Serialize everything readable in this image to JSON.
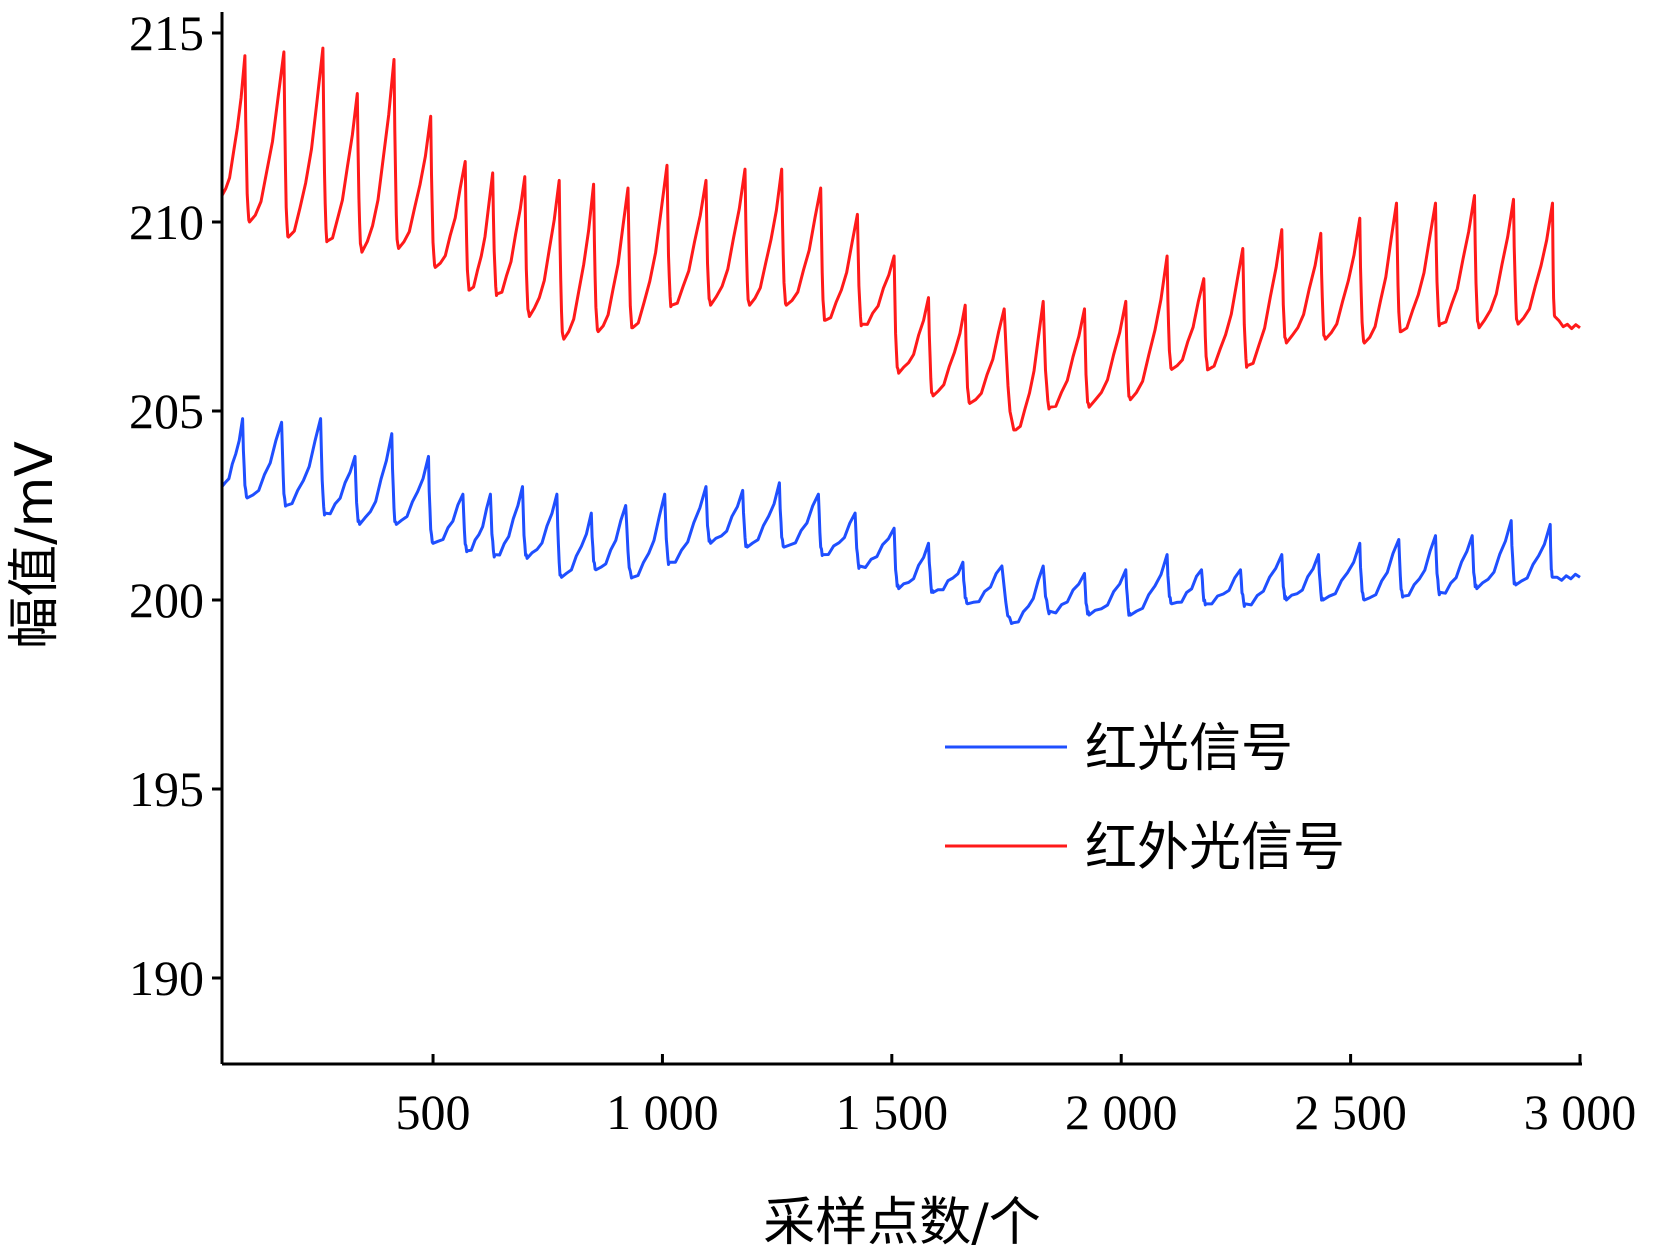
{
  "chart_data": {
    "type": "line",
    "title": "",
    "xlabel": "采样点数/个",
    "ylabel": "幅值/mV",
    "xlim": [
      40,
      3000
    ],
    "ylim": [
      188,
      216
    ],
    "x_ticks": [
      500,
      1000,
      1500,
      2000,
      2500,
      3000
    ],
    "x_tick_labels": [
      "500",
      "1 000",
      "1 500",
      "2 000",
      "2 500",
      "3 000"
    ],
    "y_ticks": [
      190,
      195,
      200,
      205,
      210,
      215
    ],
    "y_tick_labels": [
      "190",
      "195",
      "200",
      "205",
      "210",
      "215"
    ],
    "grid": false,
    "legend_position": "bottom-right",
    "series": [
      {
        "name": "红光信号",
        "color": "#1f4fff",
        "peaks": [
          [
            85,
            204.8
          ],
          [
            170,
            204.7
          ],
          [
            255,
            204.8
          ],
          [
            330,
            203.8
          ],
          [
            410,
            204.4
          ],
          [
            490,
            203.8
          ],
          [
            565,
            202.8
          ],
          [
            625,
            202.8
          ],
          [
            695,
            203.0
          ],
          [
            770,
            202.8
          ],
          [
            845,
            202.3
          ],
          [
            920,
            202.5
          ],
          [
            1005,
            202.8
          ],
          [
            1095,
            203.0
          ],
          [
            1175,
            202.9
          ],
          [
            1255,
            203.1
          ],
          [
            1340,
            202.8
          ],
          [
            1420,
            202.3
          ],
          [
            1505,
            201.9
          ],
          [
            1580,
            201.5
          ],
          [
            1655,
            201.0
          ],
          [
            1740,
            200.9
          ],
          [
            1830,
            200.9
          ],
          [
            1920,
            200.7
          ],
          [
            2010,
            200.8
          ],
          [
            2100,
            201.2
          ],
          [
            2175,
            200.8
          ],
          [
            2260,
            200.8
          ],
          [
            2350,
            201.2
          ],
          [
            2430,
            201.2
          ],
          [
            2520,
            201.5
          ],
          [
            2605,
            201.6
          ],
          [
            2685,
            201.7
          ],
          [
            2765,
            201.7
          ],
          [
            2850,
            202.1
          ],
          [
            2935,
            202.0
          ]
        ],
        "troughs": [
          [
            40,
            203.0
          ],
          [
            95,
            202.7
          ],
          [
            180,
            202.5
          ],
          [
            265,
            202.3
          ],
          [
            340,
            202.0
          ],
          [
            420,
            202.0
          ],
          [
            500,
            201.5
          ],
          [
            575,
            201.3
          ],
          [
            635,
            201.2
          ],
          [
            705,
            201.1
          ],
          [
            780,
            200.6
          ],
          [
            855,
            200.8
          ],
          [
            935,
            200.6
          ],
          [
            1015,
            201.0
          ],
          [
            1105,
            201.5
          ],
          [
            1185,
            201.4
          ],
          [
            1265,
            201.4
          ],
          [
            1350,
            201.2
          ],
          [
            1430,
            200.9
          ],
          [
            1515,
            200.3
          ],
          [
            1590,
            200.2
          ],
          [
            1665,
            199.9
          ],
          [
            1765,
            199.4
          ],
          [
            1845,
            199.7
          ],
          [
            1930,
            199.6
          ],
          [
            2020,
            199.6
          ],
          [
            2110,
            199.9
          ],
          [
            2185,
            199.9
          ],
          [
            2270,
            199.9
          ],
          [
            2360,
            200.0
          ],
          [
            2440,
            200.0
          ],
          [
            2530,
            200.0
          ],
          [
            2615,
            200.1
          ],
          [
            2695,
            200.2
          ],
          [
            2775,
            200.3
          ],
          [
            2860,
            200.4
          ],
          [
            2940,
            200.6
          ],
          [
            3000,
            200.6
          ]
        ]
      },
      {
        "name": "红外光信号",
        "color": "#ff1a1a",
        "peaks": [
          [
            90,
            214.4
          ],
          [
            175,
            214.5
          ],
          [
            260,
            214.6
          ],
          [
            335,
            213.4
          ],
          [
            415,
            214.3
          ],
          [
            495,
            212.8
          ],
          [
            570,
            211.6
          ],
          [
            630,
            211.3
          ],
          [
            700,
            211.2
          ],
          [
            775,
            211.1
          ],
          [
            850,
            211.0
          ],
          [
            925,
            210.9
          ],
          [
            1010,
            211.5
          ],
          [
            1095,
            211.1
          ],
          [
            1180,
            211.4
          ],
          [
            1260,
            211.4
          ],
          [
            1345,
            210.9
          ],
          [
            1425,
            210.2
          ],
          [
            1505,
            209.1
          ],
          [
            1580,
            208.0
          ],
          [
            1660,
            207.8
          ],
          [
            1745,
            207.7
          ],
          [
            1830,
            207.9
          ],
          [
            1920,
            207.7
          ],
          [
            2010,
            207.9
          ],
          [
            2100,
            209.1
          ],
          [
            2180,
            208.5
          ],
          [
            2265,
            209.3
          ],
          [
            2350,
            209.8
          ],
          [
            2435,
            209.7
          ],
          [
            2520,
            210.1
          ],
          [
            2600,
            210.5
          ],
          [
            2685,
            210.5
          ],
          [
            2770,
            210.7
          ],
          [
            2855,
            210.6
          ],
          [
            2940,
            210.5
          ]
        ],
        "troughs": [
          [
            40,
            210.7
          ],
          [
            100,
            210.0
          ],
          [
            185,
            209.6
          ],
          [
            270,
            209.5
          ],
          [
            345,
            209.2
          ],
          [
            425,
            209.3
          ],
          [
            505,
            208.8
          ],
          [
            580,
            208.2
          ],
          [
            640,
            208.1
          ],
          [
            710,
            207.5
          ],
          [
            785,
            206.9
          ],
          [
            860,
            207.1
          ],
          [
            935,
            207.2
          ],
          [
            1020,
            207.8
          ],
          [
            1105,
            207.8
          ],
          [
            1190,
            207.8
          ],
          [
            1270,
            207.8
          ],
          [
            1355,
            207.4
          ],
          [
            1435,
            207.3
          ],
          [
            1515,
            206.0
          ],
          [
            1590,
            205.4
          ],
          [
            1670,
            205.2
          ],
          [
            1770,
            204.5
          ],
          [
            1845,
            205.1
          ],
          [
            1930,
            205.1
          ],
          [
            2020,
            205.3
          ],
          [
            2110,
            206.1
          ],
          [
            2190,
            206.1
          ],
          [
            2275,
            206.2
          ],
          [
            2360,
            206.8
          ],
          [
            2445,
            206.9
          ],
          [
            2530,
            206.8
          ],
          [
            2610,
            207.1
          ],
          [
            2695,
            207.3
          ],
          [
            2780,
            207.2
          ],
          [
            2865,
            207.3
          ],
          [
            2945,
            207.5
          ],
          [
            3000,
            207.2
          ]
        ]
      }
    ]
  }
}
